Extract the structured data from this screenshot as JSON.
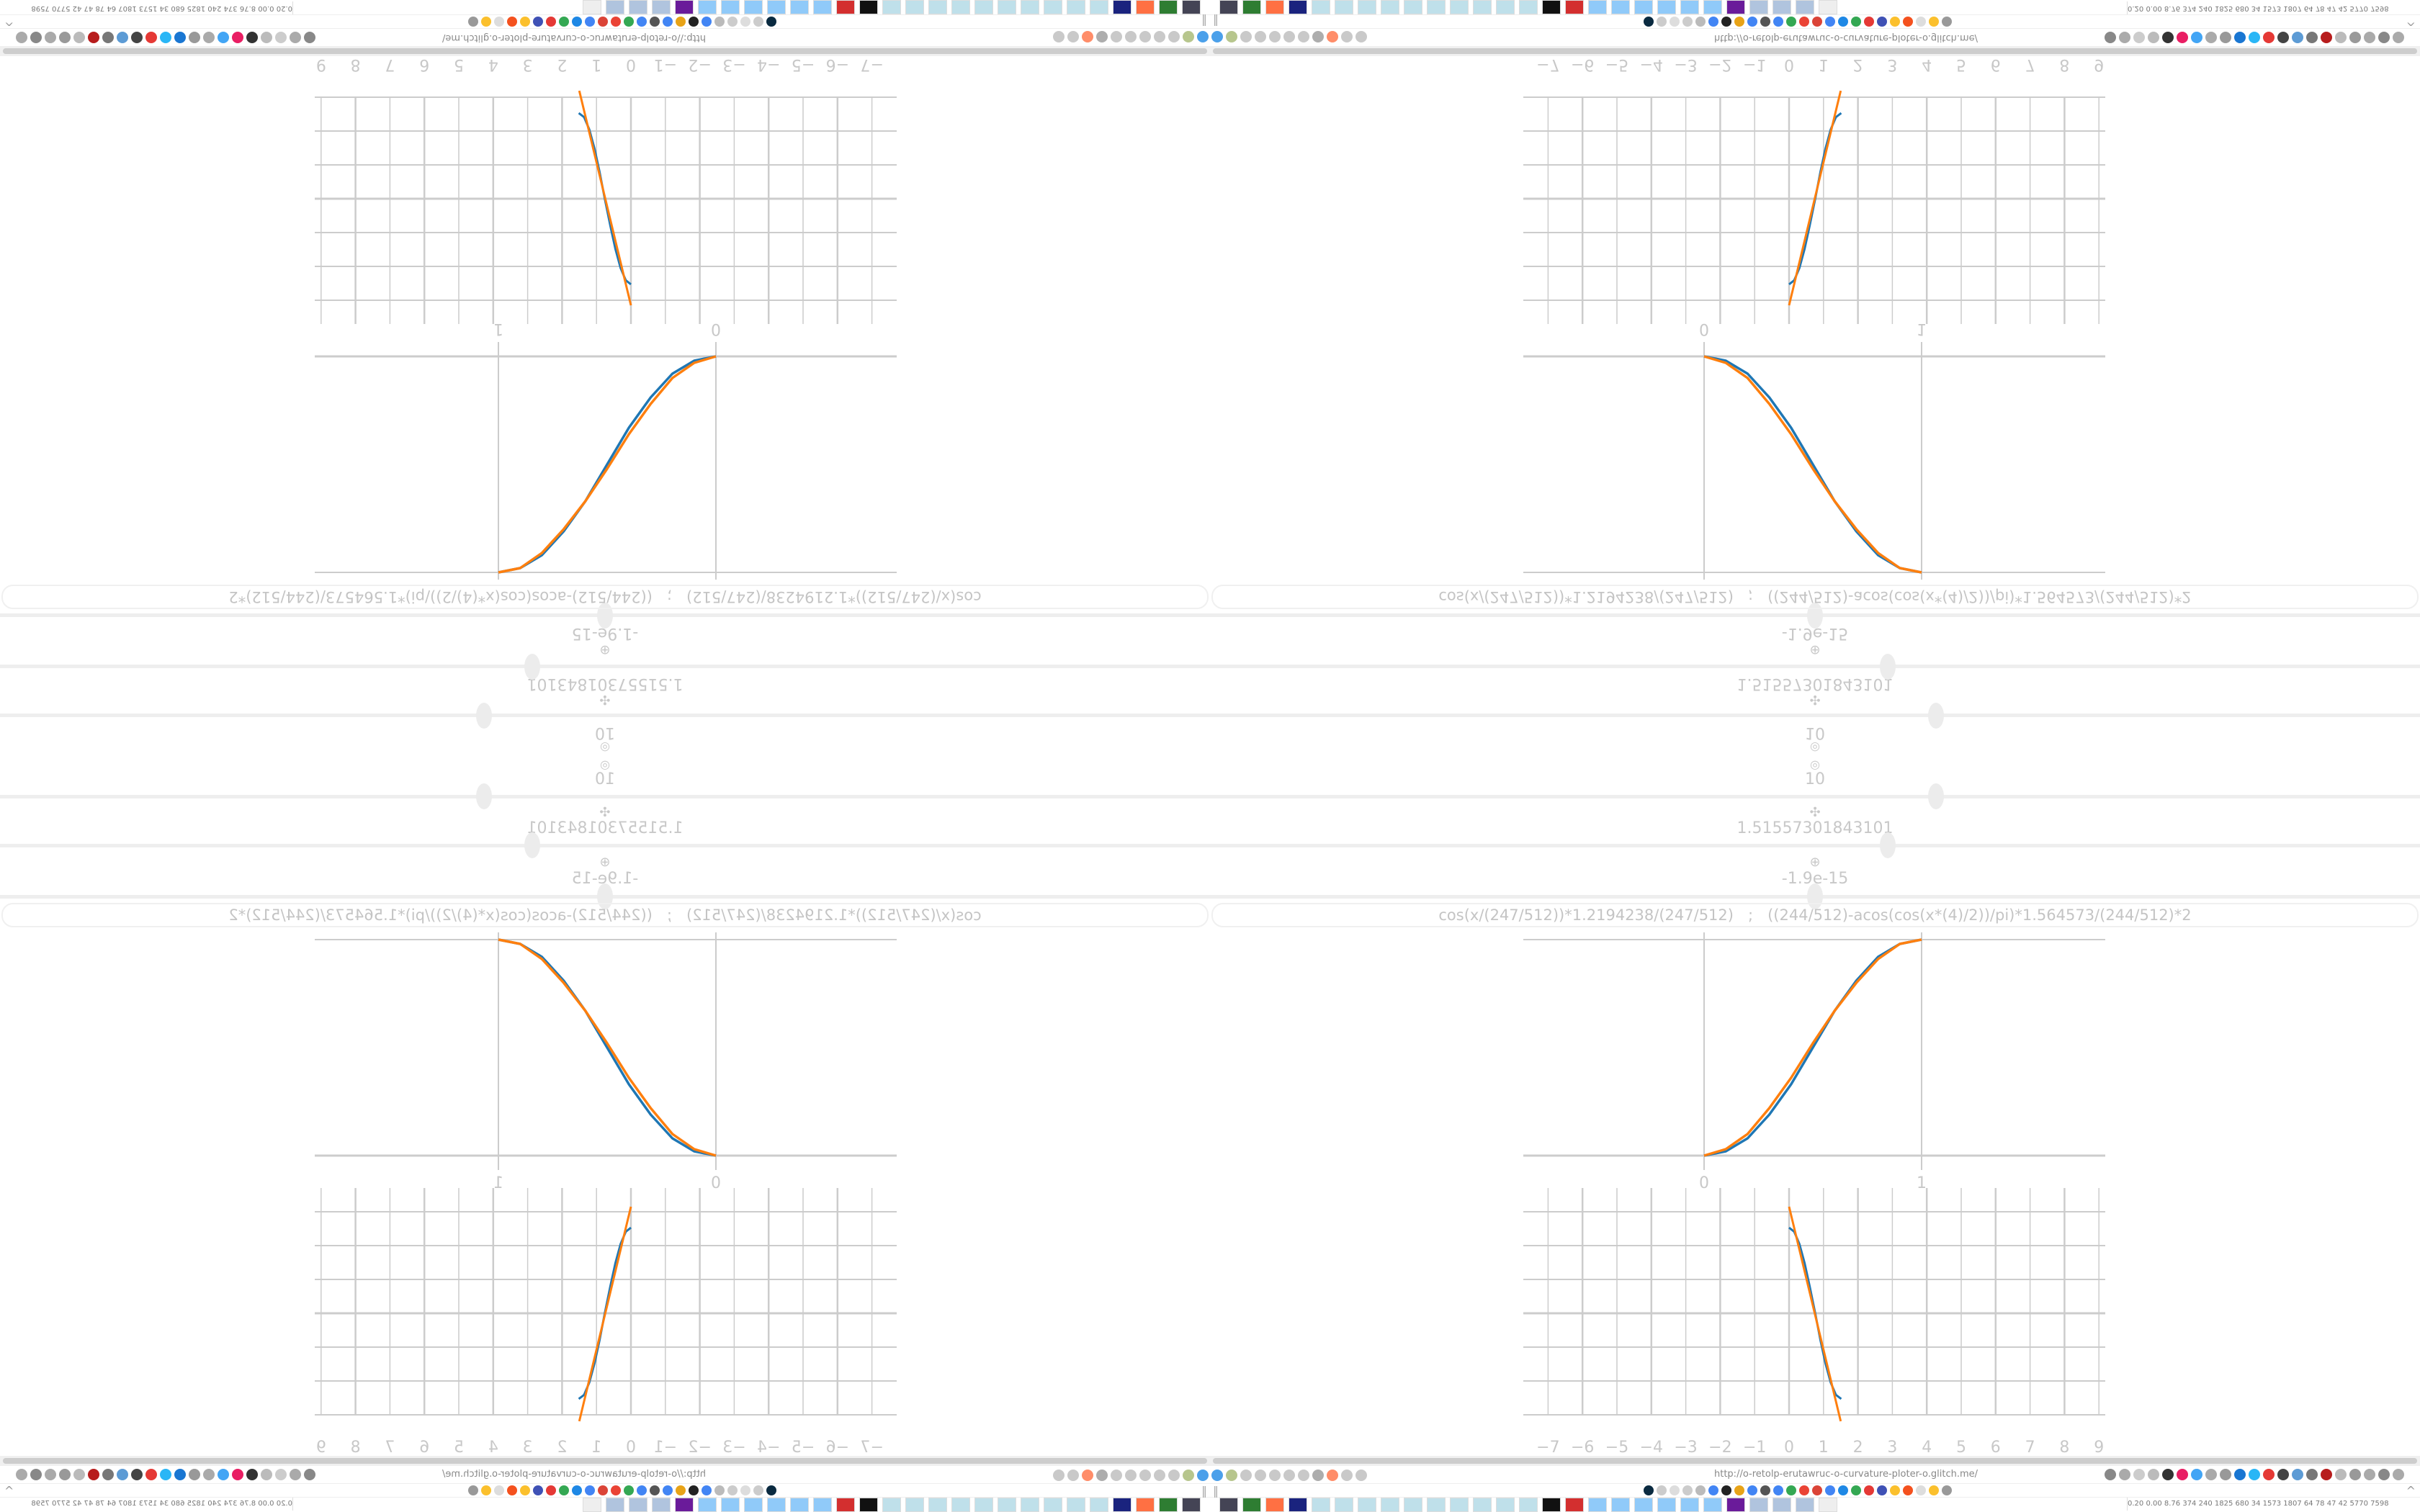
{
  "controls": {
    "icon_target": "target-icon",
    "steps_value": "10",
    "move_icon": "move-icon",
    "length_value": "1.51557301843101",
    "center_icon": "crosshair-icon",
    "error_value": "-1.9e-15",
    "sliders": [
      0.6,
      0.56,
      0.5
    ],
    "formula": "cos(x/(247/512))*1.2194238/(247/512)   ;   ((244/512)-acos(cos(x*(4)/2))/pi)*1.564573/(244/512)*2"
  },
  "colors": {
    "blue": "#1f77b4",
    "orange": "#ff7f0e",
    "grid": "#cccccc"
  },
  "chart_data": [
    {
      "type": "line",
      "x_ticks": [
        "0",
        "1"
      ],
      "xlim": [
        0,
        1
      ],
      "ylim": [
        0,
        1
      ],
      "grid": true,
      "series": [
        {
          "color": "#1f77b4",
          "x": [
            0,
            0.1,
            0.2,
            0.3,
            0.4,
            0.5,
            0.6,
            0.7,
            0.8,
            0.9,
            1
          ],
          "y": [
            0,
            0.02,
            0.08,
            0.19,
            0.33,
            0.5,
            0.67,
            0.81,
            0.92,
            0.98,
            1
          ]
        },
        {
          "color": "#ff7f0e",
          "x": [
            0,
            0.1,
            0.2,
            0.3,
            0.4,
            0.5,
            0.6,
            0.7,
            0.8,
            0.9,
            1
          ],
          "y": [
            0,
            0.03,
            0.1,
            0.22,
            0.36,
            0.52,
            0.67,
            0.8,
            0.91,
            0.98,
            1
          ]
        }
      ]
    },
    {
      "type": "line",
      "x_ticks": [
        "−7",
        "−6",
        "−5",
        "−4",
        "−3",
        "−2",
        "−1",
        "0",
        "1",
        "2",
        "3",
        "4",
        "5",
        "6",
        "7",
        "8",
        "9"
      ],
      "xlim": [
        -7,
        9
      ],
      "ylim": [
        -3,
        3
      ],
      "grid": true,
      "series": [
        {
          "color": "#1f77b4",
          "x": [
            0,
            0.15,
            0.3,
            0.45,
            0.6,
            0.76,
            0.91,
            1.06,
            1.21,
            1.36,
            1.5156
          ],
          "y": [
            2.53,
            2.41,
            2.05,
            1.49,
            0.79,
            0,
            -0.79,
            -1.49,
            -2.05,
            -2.41,
            -2.53
          ]
        },
        {
          "color": "#ff7f0e",
          "x": [
            0,
            1.5
          ],
          "y": [
            3.15,
            -3.19
          ]
        }
      ]
    }
  ],
  "browser": {
    "url": "http://o-retolp-erutawruc-o-curvature-ploter-o.glitch.me/",
    "status_numbers": "0.20 0.00 8.76 374 240 1825 680 34 1573 1807 64 78 47 42 5770 7598"
  }
}
